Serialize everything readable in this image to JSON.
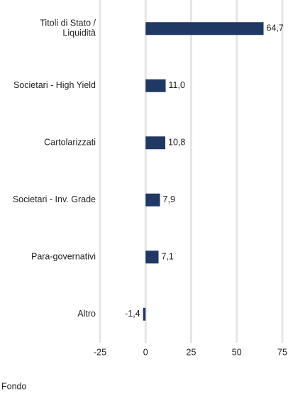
{
  "chart_data": {
    "type": "bar",
    "orientation": "horizontal",
    "categories": [
      "Titoli di Stato /\nLiquidità",
      "Societari - High Yield",
      "Cartolarizzati",
      "Societari - Inv. Grade",
      "Para-governativi",
      "Altro"
    ],
    "series": [
      {
        "name": "Fondo",
        "color": "#1f3864",
        "values": [
          64.7,
          11.0,
          10.8,
          7.9,
          7.1,
          -1.4
        ],
        "value_labels": [
          "64,7",
          "11,0",
          "10,8",
          "7,9",
          "7,1",
          "-1,4"
        ]
      }
    ],
    "xlim": [
      -25,
      75
    ],
    "xticks": [
      -25,
      0,
      25,
      50,
      75
    ],
    "grid": true
  }
}
